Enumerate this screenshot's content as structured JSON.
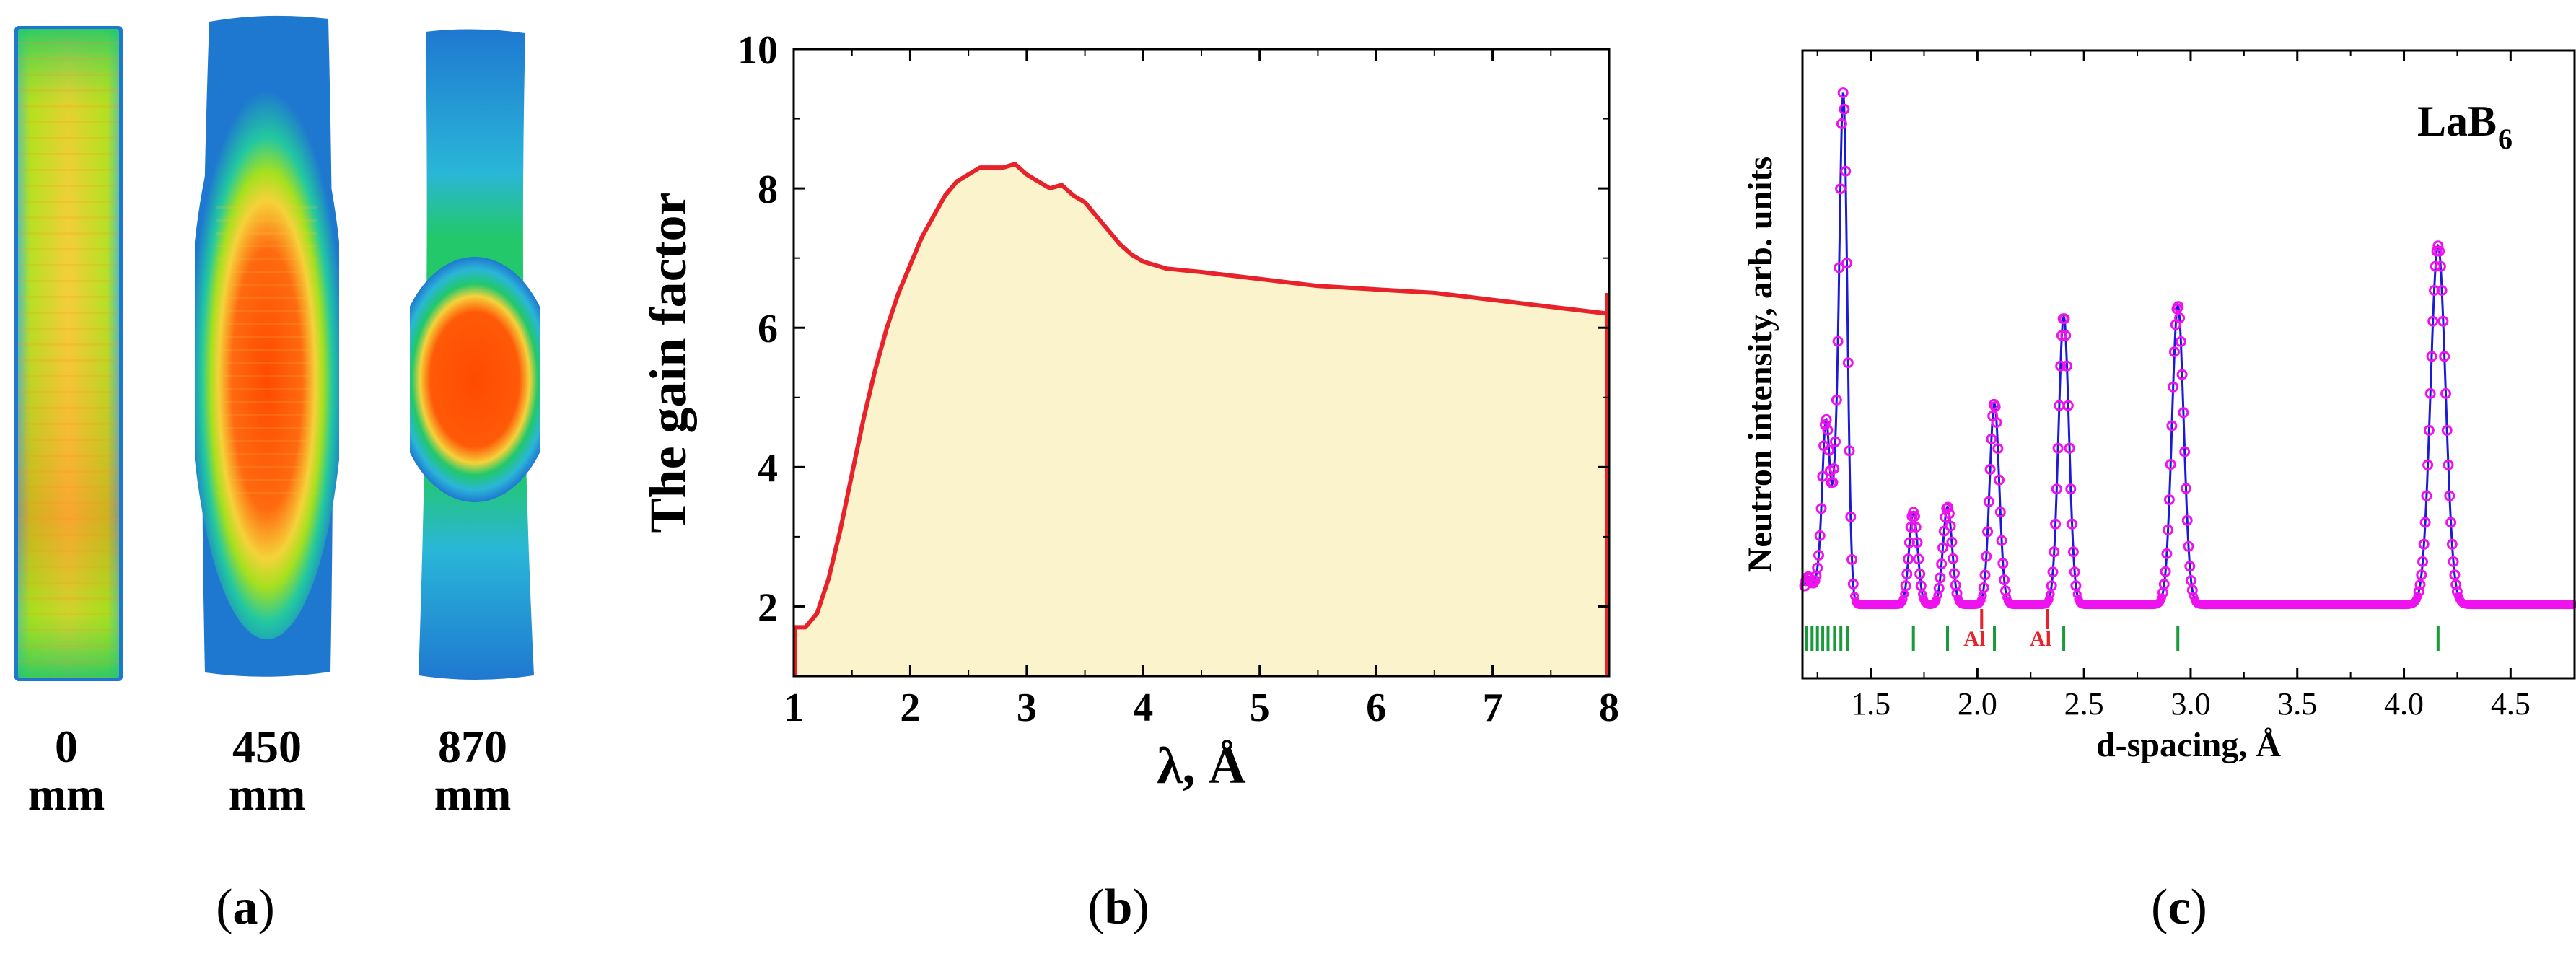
{
  "panels": {
    "a": {
      "label": "a",
      "images": [
        {
          "distance": "0",
          "unit": "mm"
        },
        {
          "distance": "450",
          "unit": "mm"
        },
        {
          "distance": "870",
          "unit": "mm"
        }
      ]
    },
    "b": {
      "label": "b"
    },
    "c": {
      "label": "c"
    }
  },
  "colors": {
    "gain_line": "#e8222a",
    "gain_fill": "#fbf3cc",
    "fit_line": "#1a1ad8",
    "observed": "#ee12ee",
    "ticks_main": "#1a9a3a",
    "ticks_al": "#e8222a",
    "colormap": [
      "#1f78d0",
      "#2ab6d8",
      "#22c86a",
      "#a6e01e",
      "#f5e23a",
      "#ff9a12",
      "#ff4a00"
    ]
  },
  "chart_data": [
    {
      "type": "area",
      "xlabel": "λ, Å",
      "ylabel": "The gain factor",
      "xlim": [
        1,
        8
      ],
      "ylim": [
        1,
        10
      ],
      "x_ticks": [
        1,
        2,
        3,
        4,
        5,
        6,
        7,
        8
      ],
      "y_ticks": [
        2,
        4,
        6,
        8,
        10
      ],
      "grid": false,
      "series": [
        {
          "x": [
            1.0,
            1.1,
            1.2,
            1.3,
            1.4,
            1.5,
            1.6,
            1.7,
            1.8,
            1.9,
            2.0,
            2.1,
            2.2,
            2.3,
            2.4,
            2.5,
            2.6,
            2.7,
            2.8,
            2.9,
            3.0,
            3.1,
            3.2,
            3.3,
            3.4,
            3.5,
            3.6,
            3.7,
            3.8,
            3.9,
            4.0,
            4.2,
            4.5,
            5.0,
            5.5,
            6.0,
            6.5,
            7.0,
            7.5,
            8.0
          ],
          "y": [
            1.7,
            1.7,
            1.9,
            2.4,
            3.1,
            3.9,
            4.7,
            5.4,
            6.0,
            6.5,
            6.9,
            7.3,
            7.6,
            7.9,
            8.1,
            8.2,
            8.3,
            8.3,
            8.3,
            8.35,
            8.2,
            8.1,
            8.0,
            8.05,
            7.9,
            7.8,
            7.6,
            7.4,
            7.2,
            7.05,
            6.95,
            6.85,
            6.8,
            6.7,
            6.6,
            6.55,
            6.5,
            6.4,
            6.3,
            6.2
          ]
        }
      ]
    },
    {
      "type": "line",
      "xlabel": "d-spacing, Å",
      "ylabel": "Neutron intensity, arb. units",
      "annotation": "LaB",
      "annotation_sub": "6",
      "xlim": [
        1.18,
        4.8
      ],
      "ylim": [
        0,
        1
      ],
      "x_ticks": [
        1.5,
        2.0,
        2.5,
        3.0,
        3.5,
        4.0,
        4.5
      ],
      "x_tick_labels": [
        "1.5",
        "2.0",
        "2.5",
        "3.0",
        "3.5",
        "4.0",
        "4.5"
      ],
      "baseline": 0.1,
      "peaks": [
        {
          "d": 1.205,
          "h": 0.05
        },
        {
          "d": 1.25,
          "h": 0.04
        },
        {
          "d": 1.29,
          "h": 0.33
        },
        {
          "d": 1.335,
          "h": 0.18
        },
        {
          "d": 1.372,
          "h": 0.92
        },
        {
          "d": 1.7,
          "h": 0.17
        },
        {
          "d": 1.86,
          "h": 0.18
        },
        {
          "d": 2.08,
          "h": 0.37
        },
        {
          "d": 2.405,
          "h": 0.53
        },
        {
          "d": 2.94,
          "h": 0.55
        },
        {
          "d": 4.16,
          "h": 0.66
        }
      ],
      "reflection_ticks": [
        1.2,
        1.225,
        1.25,
        1.275,
        1.3,
        1.33,
        1.36,
        1.39,
        1.7,
        1.86,
        2.08,
        2.405,
        2.94,
        4.16
      ],
      "al_ticks": [
        {
          "d": 2.02,
          "label": "Al"
        },
        {
          "d": 2.33,
          "label": "Al"
        }
      ]
    }
  ]
}
